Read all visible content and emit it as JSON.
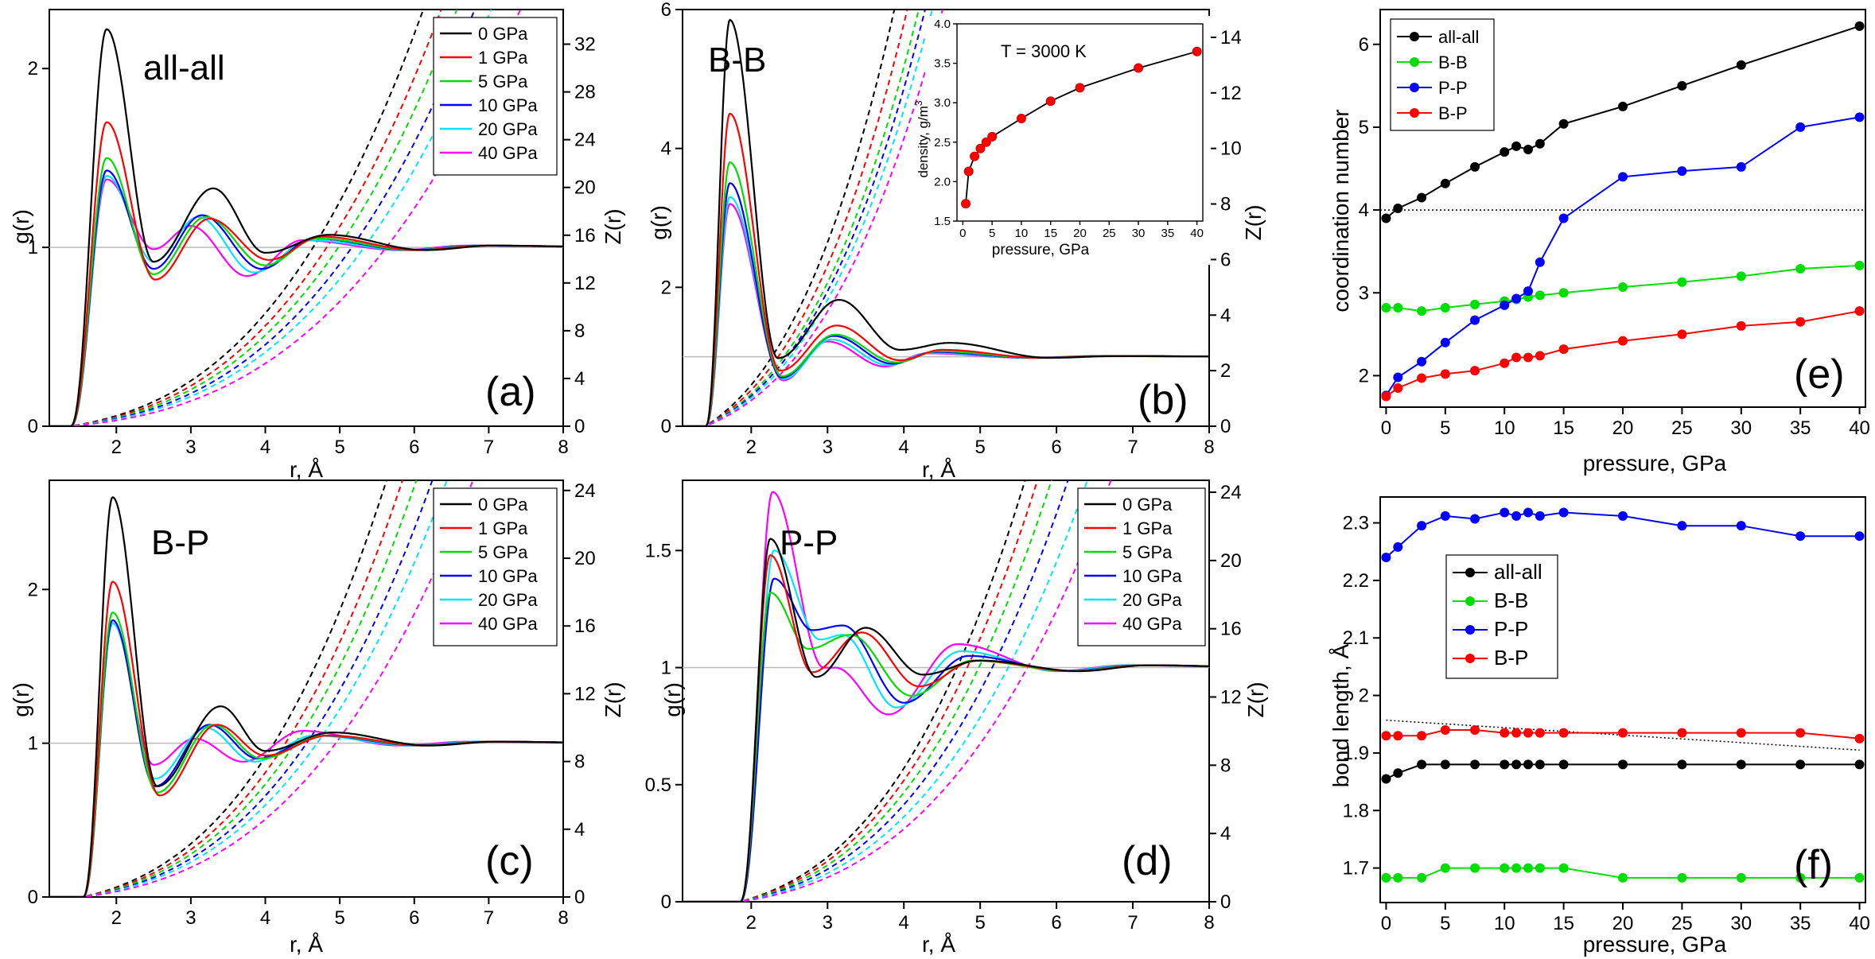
{
  "colors": {
    "p0": "#000000",
    "p1": "#ff0000",
    "p5": "#00dd00",
    "p10": "#0000ff",
    "p20": "#00e5ff",
    "p40": "#ff00ff"
  },
  "legend_pressures": [
    "0 GPa",
    "1 GPa",
    "5 GPa",
    "10 GPa",
    "20 GPa",
    "40 GPa"
  ],
  "chart_data": [
    {
      "id": "a",
      "type": "line",
      "title": "all-all",
      "panel_label": "(a)",
      "xlabel": "r, Å",
      "ylabel": "g(r)",
      "y2label": "Z(r)",
      "xlim": [
        1.1,
        8
      ],
      "ylim": [
        0,
        2.33
      ],
      "y2lim": [
        0,
        34.9
      ],
      "xticks": [
        2,
        3,
        4,
        5,
        6,
        7,
        8
      ],
      "yticks": [
        0,
        1,
        2
      ],
      "y2ticks": [
        0,
        4,
        8,
        12,
        16,
        20,
        24,
        28,
        32
      ],
      "r0": 1.38,
      "peaks": [
        {
          "name": "0 GPa",
          "h1": 2.22,
          "r1": 1.87,
          "m1": 0.92,
          "rm1": 2.5,
          "h2": 1.33,
          "r2": 3.3,
          "m2": 0.97,
          "rm2": 4.0,
          "h3": 1.07,
          "r3": 4.85,
          "z0": 1.8
        },
        {
          "name": "1 GPa",
          "h1": 1.7,
          "r1": 1.87,
          "m1": 0.82,
          "rm1": 2.52,
          "h2": 1.16,
          "r2": 3.25,
          "m2": 0.93,
          "rm2": 4.05,
          "h3": 1.06,
          "r3": 4.75,
          "z0": 1.6
        },
        {
          "name": "5 GPa",
          "h1": 1.5,
          "r1": 1.87,
          "m1": 0.85,
          "rm1": 2.5,
          "h2": 1.17,
          "r2": 3.2,
          "m2": 0.9,
          "rm2": 4.0,
          "h3": 1.05,
          "r3": 4.7,
          "z0": 1.45
        },
        {
          "name": "10 GPa",
          "h1": 1.43,
          "r1": 1.87,
          "m1": 0.88,
          "rm1": 2.5,
          "h2": 1.18,
          "r2": 3.15,
          "m2": 0.88,
          "rm2": 3.95,
          "h3": 1.05,
          "r3": 4.65,
          "z0": 1.3
        },
        {
          "name": "20 GPa",
          "h1": 1.4,
          "r1": 1.87,
          "m1": 0.92,
          "rm1": 2.5,
          "h2": 1.17,
          "r2": 3.1,
          "m2": 0.86,
          "rm2": 3.85,
          "h3": 1.04,
          "r3": 4.6,
          "z0": 1.18
        },
        {
          "name": "40 GPa",
          "h1": 1.38,
          "r1": 1.87,
          "m1": 0.99,
          "rm1": 2.5,
          "h2": 1.12,
          "r2": 3.0,
          "m2": 0.84,
          "rm2": 3.75,
          "h3": 1.04,
          "r3": 4.5,
          "z0": 1.0
        }
      ]
    },
    {
      "id": "b",
      "type": "line",
      "title": "B-B",
      "panel_label": "(b)",
      "xlabel": "r, Å",
      "ylabel": "g(r)",
      "y2label": "Z(r)",
      "xlim": [
        1.1,
        8
      ],
      "ylim": [
        0,
        6
      ],
      "y2lim": [
        0,
        15
      ],
      "xticks": [
        2,
        3,
        4,
        5,
        6,
        7,
        8
      ],
      "yticks": [
        0,
        2,
        4,
        6
      ],
      "y2ticks": [
        0,
        2,
        4,
        6,
        8,
        10,
        12,
        14
      ],
      "r0": 1.4,
      "peaks": [
        {
          "name": "0 GPa",
          "h1": 5.85,
          "r1": 1.72,
          "m1": 0.98,
          "rm1": 2.35,
          "h2": 1.82,
          "r2": 3.15,
          "m2": 1.1,
          "rm2": 3.95,
          "h3": 1.2,
          "r3": 4.6,
          "z0": 3.2
        },
        {
          "name": "1 GPa",
          "h1": 4.5,
          "r1": 1.72,
          "m1": 0.8,
          "rm1": 2.38,
          "h2": 1.45,
          "r2": 3.12,
          "m2": 0.95,
          "rm2": 3.95,
          "h3": 1.1,
          "r3": 4.5,
          "z0": 2.8
        },
        {
          "name": "5 GPa",
          "h1": 3.8,
          "r1": 1.72,
          "m1": 0.72,
          "rm1": 2.4,
          "h2": 1.32,
          "r2": 3.1,
          "m2": 0.92,
          "rm2": 3.9,
          "h3": 1.08,
          "r3": 4.45,
          "z0": 2.5
        },
        {
          "name": "10 GPa",
          "h1": 3.5,
          "r1": 1.72,
          "m1": 0.7,
          "rm1": 2.4,
          "h2": 1.3,
          "r2": 3.08,
          "m2": 0.9,
          "rm2": 3.85,
          "h3": 1.07,
          "r3": 4.4,
          "z0": 2.35
        },
        {
          "name": "20 GPa",
          "h1": 3.3,
          "r1": 1.72,
          "m1": 0.68,
          "rm1": 2.42,
          "h2": 1.25,
          "r2": 3.05,
          "m2": 0.88,
          "rm2": 3.8,
          "h3": 1.06,
          "r3": 4.35,
          "z0": 2.2
        },
        {
          "name": "40 GPa",
          "h1": 3.2,
          "r1": 1.72,
          "m1": 0.66,
          "rm1": 2.42,
          "h2": 1.22,
          "r2": 3.0,
          "m2": 0.86,
          "rm2": 3.75,
          "h3": 1.05,
          "r3": 4.3,
          "z0": 2.0
        }
      ],
      "inset": {
        "title": "T = 3000 K",
        "xlabel": "pressure, GPa",
        "ylabel": "density, g/m",
        "ylabel_sup": "3",
        "xlim": [
          -1,
          41
        ],
        "ylim": [
          1.5,
          4.0
        ],
        "xticks": [
          0,
          5,
          10,
          15,
          20,
          25,
          30,
          35,
          40
        ],
        "yticks": [
          1.5,
          2.0,
          2.5,
          3.0,
          3.5,
          4.0
        ],
        "x": [
          0.5,
          1,
          2,
          3,
          4,
          5,
          10,
          15,
          20,
          30,
          40
        ],
        "y": [
          1.72,
          2.13,
          2.32,
          2.42,
          2.5,
          2.57,
          2.8,
          3.02,
          3.19,
          3.44,
          3.65
        ]
      }
    },
    {
      "id": "c",
      "type": "line",
      "title": "B-P",
      "panel_label": "(c)",
      "xlabel": "r, Å",
      "ylabel": "g(r)",
      "y2label": "Z(r)",
      "xlim": [
        1.1,
        8
      ],
      "ylim": [
        0,
        2.71
      ],
      "y2lim": [
        0,
        24.6
      ],
      "xticks": [
        2,
        3,
        4,
        5,
        6,
        7,
        8
      ],
      "yticks": [
        0,
        1,
        2
      ],
      "y2ticks": [
        0,
        4,
        8,
        12,
        16,
        20,
        24
      ],
      "r0": 1.55,
      "peaks": [
        {
          "name": "0 GPa",
          "h1": 2.6,
          "r1": 1.95,
          "m1": 0.72,
          "rm1": 2.55,
          "h2": 1.24,
          "r2": 3.4,
          "m2": 0.95,
          "rm2": 4.0,
          "h3": 1.07,
          "r3": 4.9,
          "z0": 1.8
        },
        {
          "name": "1 GPa",
          "h1": 2.05,
          "r1": 1.95,
          "m1": 0.66,
          "rm1": 2.58,
          "h2": 1.12,
          "r2": 3.35,
          "m2": 0.92,
          "rm2": 4.0,
          "h3": 1.05,
          "r3": 4.85,
          "z0": 1.6
        },
        {
          "name": "5 GPa",
          "h1": 1.85,
          "r1": 1.95,
          "m1": 0.68,
          "rm1": 2.55,
          "h2": 1.12,
          "r2": 3.3,
          "m2": 0.9,
          "rm2": 3.95,
          "h3": 1.05,
          "r3": 4.8,
          "z0": 1.45
        },
        {
          "name": "10 GPa",
          "h1": 1.8,
          "r1": 1.95,
          "m1": 0.72,
          "rm1": 2.52,
          "h2": 1.12,
          "r2": 3.25,
          "m2": 0.9,
          "rm2": 3.9,
          "h3": 1.05,
          "r3": 4.75,
          "z0": 1.3
        },
        {
          "name": "20 GPa",
          "h1": 1.78,
          "r1": 1.95,
          "m1": 0.77,
          "rm1": 2.52,
          "h2": 1.1,
          "r2": 3.2,
          "m2": 0.88,
          "rm2": 3.85,
          "h3": 1.05,
          "r3": 4.65,
          "z0": 1.18
        },
        {
          "name": "40 GPa",
          "h1": 1.78,
          "r1": 1.95,
          "m1": 0.86,
          "rm1": 2.5,
          "h2": 1.03,
          "r2": 3.05,
          "m2": 0.88,
          "rm2": 3.7,
          "h3": 1.08,
          "r3": 4.5,
          "z0": 1.0
        }
      ]
    },
    {
      "id": "d",
      "type": "line",
      "title": "P-P",
      "panel_label": "(d)",
      "xlabel": "r, Å",
      "ylabel": "g(r)",
      "y2label": "Z(r)",
      "xlim": [
        1.1,
        8
      ],
      "ylim": [
        0,
        1.8
      ],
      "y2lim": [
        0,
        24.7
      ],
      "xticks": [
        2,
        3,
        4,
        5,
        6,
        7,
        8
      ],
      "yticks": [
        0.0,
        0.5,
        1.0,
        1.5
      ],
      "y2ticks": [
        0,
        4,
        8,
        12,
        16,
        20,
        24
      ],
      "r0": 1.85,
      "peaks": [
        {
          "name": "0 GPa",
          "h1": 1.55,
          "r1": 2.25,
          "m1": 0.96,
          "rm1": 2.85,
          "h2": 1.17,
          "r2": 3.5,
          "m2": 0.97,
          "rm2": 4.25,
          "h3": 1.03,
          "r3": 5.0,
          "z0": 2.2
        },
        {
          "name": "1 GPa",
          "h1": 1.48,
          "r1": 2.25,
          "m1": 0.98,
          "rm1": 2.8,
          "h2": 1.15,
          "r2": 3.45,
          "m2": 0.92,
          "rm2": 4.2,
          "h3": 1.03,
          "r3": 4.95,
          "z0": 2.0
        },
        {
          "name": "5 GPa",
          "h1": 1.32,
          "r1": 2.25,
          "m1": 1.08,
          "rm1": 2.75,
          "h2": 1.14,
          "r2": 3.3,
          "m2": 0.88,
          "rm2": 4.1,
          "h3": 1.03,
          "r3": 4.9,
          "z0": 1.8
        },
        {
          "name": "10 GPa",
          "h1": 1.38,
          "r1": 2.3,
          "m1": 1.16,
          "rm1": 2.8,
          "h2": 1.18,
          "r2": 3.2,
          "m2": 0.85,
          "rm2": 4.0,
          "h3": 1.05,
          "r3": 4.85,
          "z0": 1.6
        },
        {
          "name": "20 GPa",
          "h1": 1.5,
          "r1": 2.3,
          "m1": 1.12,
          "rm1": 2.9,
          "h2": 1.14,
          "r2": 3.2,
          "m2": 0.83,
          "rm2": 3.9,
          "h3": 1.07,
          "r3": 4.75,
          "z0": 1.4
        },
        {
          "name": "40 GPa",
          "h1": 1.75,
          "r1": 2.28,
          "m1": 1.0,
          "rm1": 2.95,
          "h2": 1.0,
          "r2": 3.1,
          "m2": 0.8,
          "rm2": 3.8,
          "h3": 1.1,
          "r3": 4.7,
          "z0": 1.2
        }
      ]
    },
    {
      "id": "e",
      "type": "line",
      "title": "",
      "panel_label": "(e)",
      "xlabel": "pressure, GPa",
      "ylabel": "coordination number",
      "xlim": [
        -0.5,
        40.5
      ],
      "ylim": [
        1.62,
        6.42
      ],
      "xticks": [
        0,
        5,
        10,
        15,
        20,
        25,
        30,
        35,
        40
      ],
      "yticks": [
        2,
        3,
        4,
        5,
        6
      ],
      "reference_line": 4,
      "x": [
        0,
        1,
        3,
        5,
        7.5,
        10,
        11,
        12,
        13,
        15,
        20,
        25,
        30,
        40
      ],
      "series": [
        {
          "name": "all-all",
          "color": "#000000",
          "values": [
            3.9,
            4.02,
            4.15,
            4.32,
            4.52,
            4.7,
            4.77,
            4.73,
            4.8,
            5.04,
            5.25,
            5.5,
            5.75,
            6.22
          ]
        },
        {
          "name": "B-B",
          "color": "#00dd00",
          "values": [
            2.82,
            2.82,
            2.78,
            2.82,
            2.86,
            2.9,
            2.92,
            2.95,
            2.97,
            3.0,
            3.07,
            3.13,
            3.2,
            3.33
          ]
        },
        {
          "name": "P-P",
          "color": "#0000ff",
          "values": [
            1.76,
            1.98,
            2.17,
            2.4,
            2.67,
            2.85,
            2.93,
            3.02,
            3.37,
            3.9,
            4.4,
            4.47,
            4.52,
            5.12
          ]
        },
        {
          "name": "B-P",
          "color": "#ff0000",
          "values": [
            1.75,
            1.85,
            1.97,
            2.02,
            2.06,
            2.15,
            2.22,
            2.22,
            2.24,
            2.32,
            2.42,
            2.5,
            2.6,
            2.78
          ]
        }
      ],
      "extra_points": {
        "x": [
          35
        ],
        "series": {
          "B-B": 3.29,
          "P-P": 5.0,
          "B-P": 2.65
        }
      }
    },
    {
      "id": "f",
      "type": "line",
      "title": "",
      "panel_label": "(f)",
      "xlabel": "pressure, GPa",
      "ylabel": "bond length, Å",
      "xlim": [
        -0.5,
        40.5
      ],
      "ylim": [
        1.64,
        2.345
      ],
      "xticks": [
        0,
        5,
        10,
        15,
        20,
        25,
        30,
        35,
        40
      ],
      "yticks": [
        1.7,
        1.8,
        1.9,
        2.0,
        2.1,
        2.2,
        2.3
      ],
      "reference_line": [
        1.957,
        1.905
      ],
      "x": [
        0,
        1,
        3,
        5,
        7.5,
        10,
        11,
        12,
        13,
        15,
        20,
        25,
        30,
        35,
        40
      ],
      "series": [
        {
          "name": "all-all",
          "color": "#000000",
          "values": [
            1.855,
            1.865,
            1.88,
            1.88,
            1.88,
            1.88,
            1.88,
            1.88,
            1.88,
            1.88,
            1.88,
            1.88,
            1.88,
            1.88,
            1.88
          ]
        },
        {
          "name": "B-B",
          "color": "#00dd00",
          "values": [
            1.683,
            1.683,
            1.683,
            1.7,
            1.7,
            1.7,
            1.7,
            1.7,
            1.7,
            1.7,
            1.683,
            1.683,
            1.683,
            1.683,
            1.683
          ]
        },
        {
          "name": "P-P",
          "color": "#0000ff",
          "values": [
            2.24,
            2.258,
            2.295,
            2.312,
            2.307,
            2.318,
            2.312,
            2.318,
            2.312,
            2.318,
            2.312,
            2.295,
            2.295,
            2.277,
            2.277
          ]
        },
        {
          "name": "B-P",
          "color": "#ff0000",
          "values": [
            1.93,
            1.93,
            1.93,
            1.94,
            1.94,
            1.935,
            1.935,
            1.935,
            1.935,
            1.935,
            1.935,
            1.935,
            1.935,
            1.935,
            1.925
          ]
        }
      ]
    }
  ]
}
